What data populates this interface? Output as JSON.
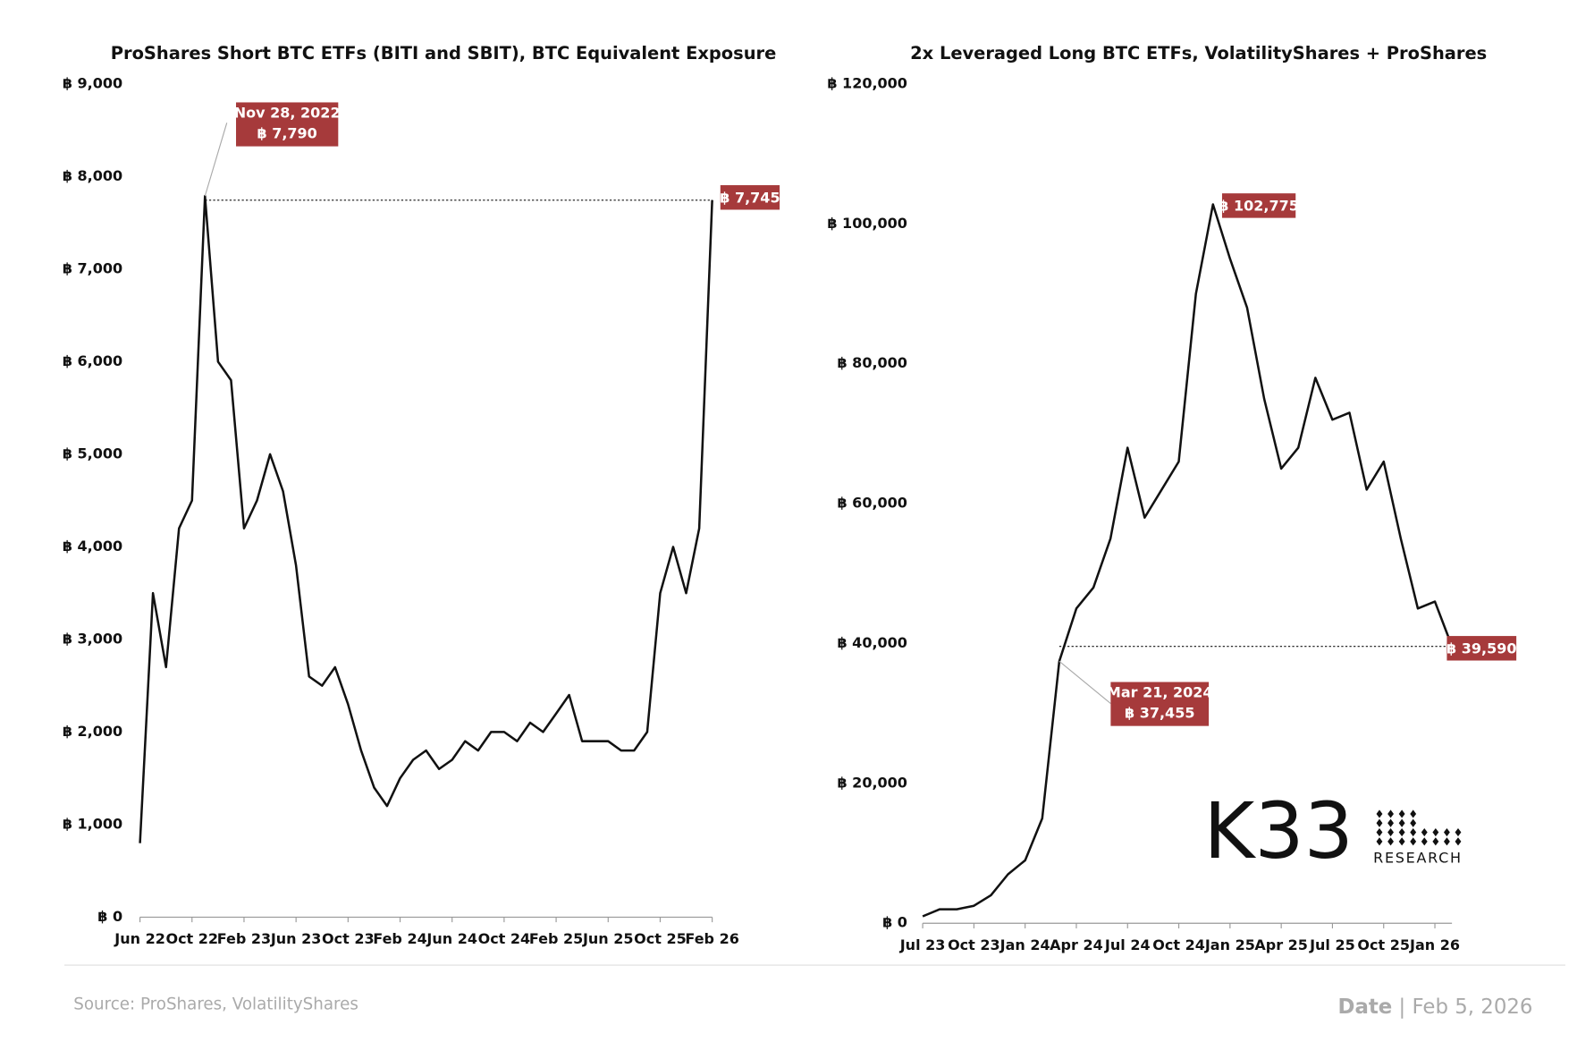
{
  "chart_data": [
    {
      "type": "line",
      "title": "ProShares Short BTC ETFs (BITI and SBIT), BTC Equivalent Exposure",
      "x": [
        "2022-06",
        "2022-07",
        "2022-08",
        "2022-09",
        "2022-10",
        "2022-11",
        "2022-12",
        "2023-01",
        "2023-02",
        "2023-03",
        "2023-04",
        "2023-05",
        "2023-06",
        "2023-07",
        "2023-08",
        "2023-09",
        "2023-10",
        "2023-11",
        "2023-12",
        "2024-01",
        "2024-02",
        "2024-03",
        "2024-04",
        "2024-05",
        "2024-06",
        "2024-07",
        "2024-08",
        "2024-09",
        "2024-10",
        "2024-11",
        "2024-12",
        "2025-01",
        "2025-02",
        "2025-03",
        "2025-04",
        "2025-05",
        "2025-06",
        "2025-07",
        "2025-08",
        "2025-09",
        "2025-10",
        "2025-11",
        "2025-12",
        "2026-01",
        "2026-02"
      ],
      "series": [
        {
          "color": "#111111",
          "values": [
            800,
            3500,
            2700,
            4200,
            4500,
            7790,
            6000,
            5800,
            4200,
            4500,
            5000,
            4600,
            3800,
            2600,
            2500,
            2700,
            2300,
            1800,
            1400,
            1200,
            1500,
            1700,
            1800,
            1600,
            1700,
            1900,
            1800,
            2000,
            2000,
            1900,
            2100,
            2000,
            2200,
            2400,
            1900,
            1900,
            1900,
            1800,
            1800,
            2000,
            3500,
            4000,
            3500,
            4200,
            7745
          ]
        }
      ],
      "xlim": [
        "2022-06",
        "2026-02"
      ],
      "xticks": [
        {
          "value": "2022-06",
          "label": "Jun 22"
        },
        {
          "value": "2022-10",
          "label": "Oct 22"
        },
        {
          "value": "2023-02",
          "label": "Feb 23"
        },
        {
          "value": "2023-06",
          "label": "Jun 23"
        },
        {
          "value": "2023-10",
          "label": "Oct 23"
        },
        {
          "value": "2024-02",
          "label": "Feb 24"
        },
        {
          "value": "2024-06",
          "label": "Jun 24"
        },
        {
          "value": "2024-10",
          "label": "Oct 24"
        },
        {
          "value": "2025-02",
          "label": "Feb 25"
        },
        {
          "value": "2025-06",
          "label": "Jun 25"
        },
        {
          "value": "2025-10",
          "label": "Oct 25"
        },
        {
          "value": "2026-02",
          "label": "Feb 26"
        }
      ],
      "ylim": [
        0,
        9000
      ],
      "yticks": [
        {
          "value": 0,
          "label": "฿ 0"
        },
        {
          "value": 1000,
          "label": "฿ 1,000"
        },
        {
          "value": 2000,
          "label": "฿ 2,000"
        },
        {
          "value": 3000,
          "label": "฿ 3,000"
        },
        {
          "value": 4000,
          "label": "฿ 4,000"
        },
        {
          "value": 5000,
          "label": "฿ 5,000"
        },
        {
          "value": 6000,
          "label": "฿ 6,000"
        },
        {
          "value": 7000,
          "label": "฿ 7,000"
        },
        {
          "value": 8000,
          "label": "฿ 8,000"
        },
        {
          "value": 9000,
          "label": "฿ 9,000"
        }
      ],
      "annotation_color": "#a63a3b",
      "annotations": [
        {
          "x": "2022-11",
          "value": 7790,
          "lines": [
            "Nov 28, 2022",
            "฿ 7,790"
          ]
        },
        {
          "x": "2026-02",
          "value": 7745,
          "lines": [
            "฿ 7,745"
          ]
        }
      ]
    },
    {
      "type": "line",
      "title": "2x Leveraged Long BTC ETFs, VolatilityShares + ProShares",
      "x": [
        "2023-07",
        "2023-08",
        "2023-09",
        "2023-10",
        "2023-11",
        "2023-12",
        "2024-01",
        "2024-02",
        "2024-03",
        "2024-04",
        "2024-05",
        "2024-06",
        "2024-07",
        "2024-08",
        "2024-09",
        "2024-10",
        "2024-11",
        "2024-12",
        "2025-01",
        "2025-02",
        "2025-03",
        "2025-04",
        "2025-05",
        "2025-06",
        "2025-07",
        "2025-08",
        "2025-09",
        "2025-10",
        "2025-11",
        "2025-12",
        "2026-01",
        "2026-02"
      ],
      "series": [
        {
          "color": "#111111",
          "values": [
            1000,
            2000,
            2000,
            2500,
            4000,
            7000,
            9000,
            15000,
            37455,
            45000,
            48000,
            55000,
            68000,
            58000,
            62000,
            66000,
            90000,
            102775,
            95000,
            88000,
            75000,
            65000,
            68000,
            78000,
            72000,
            73000,
            62000,
            66000,
            55000,
            45000,
            46000,
            39590
          ]
        }
      ],
      "xlim": [
        "2023-07",
        "2026-02"
      ],
      "xticks": [
        {
          "value": "2023-07",
          "label": "Jul 23"
        },
        {
          "value": "2023-10",
          "label": "Oct 23"
        },
        {
          "value": "2024-01",
          "label": "Jan 24"
        },
        {
          "value": "2024-04",
          "label": "Apr 24"
        },
        {
          "value": "2024-07",
          "label": "Jul 24"
        },
        {
          "value": "2024-10",
          "label": "Oct 24"
        },
        {
          "value": "2025-01",
          "label": "Jan 25"
        },
        {
          "value": "2025-04",
          "label": "Apr 25"
        },
        {
          "value": "2025-07",
          "label": "Jul 25"
        },
        {
          "value": "2025-10",
          "label": "Oct 25"
        },
        {
          "value": "2026-01",
          "label": "Jan 26"
        }
      ],
      "ylim": [
        0,
        120000
      ],
      "yticks": [
        {
          "value": 0,
          "label": "฿ 0"
        },
        {
          "value": 20000,
          "label": "฿ 20,000"
        },
        {
          "value": 40000,
          "label": "฿ 40,000"
        },
        {
          "value": 60000,
          "label": "฿ 60,000"
        },
        {
          "value": 80000,
          "label": "฿ 80,000"
        },
        {
          "value": 100000,
          "label": "฿ 100,000"
        },
        {
          "value": 120000,
          "label": "฿ 120,000"
        }
      ],
      "annotation_color": "#a63a3b",
      "annotations": [
        {
          "x": "2024-12",
          "value": 102775,
          "lines": [
            "฿ 102,775"
          ]
        },
        {
          "x": "2024-03",
          "value": 37455,
          "lines": [
            "Mar 21, 2024",
            "฿ 37,455"
          ]
        },
        {
          "x": "2026-02",
          "value": 39590,
          "lines": [
            "฿ 39,590"
          ]
        }
      ]
    }
  ],
  "footer": {
    "source": "Source:  ProShares, VolatilityShares",
    "date_label": "Date",
    "date": "| Feb 5, 2026"
  },
  "logo": {
    "name": "K33",
    "sub": "RESEARCH"
  }
}
